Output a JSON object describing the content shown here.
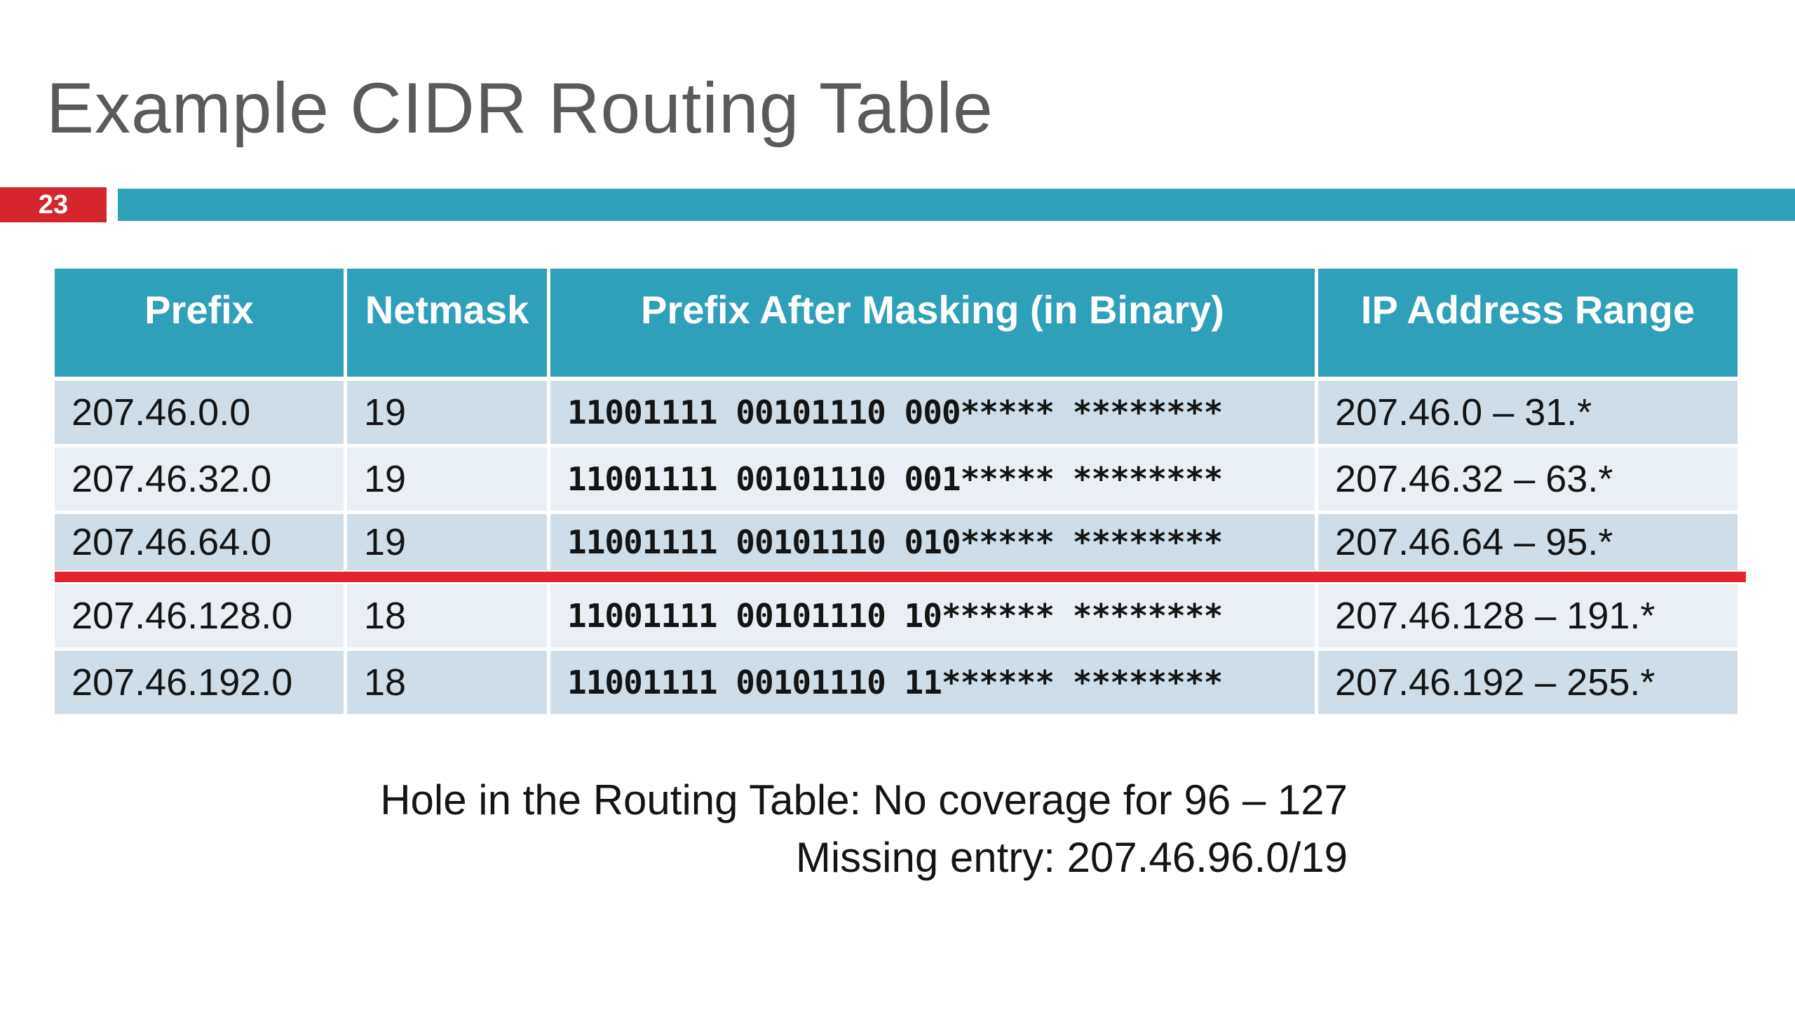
{
  "slide": {
    "title": "Example CIDR Routing Table",
    "slide_number": "23"
  },
  "colors": {
    "accent_teal": "#2fa0ba",
    "badge_red": "#d5262d",
    "divider_red": "#e2242e",
    "row_dark": "#cedde7",
    "row_light": "#e9eff4",
    "title_gray": "#595a5c",
    "header_text": "#ffffff",
    "body_text": "#141414"
  },
  "table": {
    "headers": [
      "Prefix",
      "Netmask",
      "Prefix After Masking (in Binary)",
      "IP Address Range"
    ],
    "rows": [
      {
        "prefix": "207.46.0.0",
        "netmask": "19",
        "binary": "11001111 00101110 000***** ********",
        "range": "207.46.0 – 31.*"
      },
      {
        "prefix": "207.46.32.0",
        "netmask": "19",
        "binary": "11001111 00101110 001***** ********",
        "range": "207.46.32 – 63.*"
      },
      {
        "prefix": "207.46.64.0",
        "netmask": "19",
        "binary": "11001111 00101110 010***** ********",
        "range": "207.46.64 – 95.*"
      },
      {
        "prefix": "207.46.128.0",
        "netmask": "18",
        "binary": "11001111 00101110 10****** ********",
        "range": "207.46.128 – 191.*"
      },
      {
        "prefix": "207.46.192.0",
        "netmask": "18",
        "binary": "11001111 00101110 11****** ********",
        "range": "207.46.192 – 255.*"
      }
    ]
  },
  "annotation": {
    "line1": "Hole in the Routing Table: No coverage for 96 – 127",
    "line2": "Missing entry: 207.46.96.0/19"
  }
}
